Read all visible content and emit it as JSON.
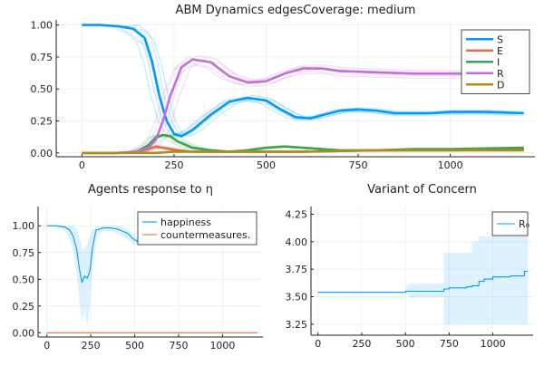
{
  "chart_data": [
    {
      "id": "abm",
      "type": "line",
      "title": "ABM Dynamics edgesCoverage: medium",
      "xlim": [
        -70,
        1230
      ],
      "ylim": [
        -0.03,
        1.04
      ],
      "xticks": [
        0,
        250,
        500,
        750,
        1000
      ],
      "yticks": [
        0.0,
        0.25,
        0.5,
        0.75,
        1.0
      ],
      "ytick_labels": [
        "0.00",
        "0.25",
        "0.50",
        "0.75",
        "1.00"
      ],
      "grid": true,
      "legend_position": "top-right",
      "series": [
        {
          "name": "S",
          "color": "#009af9",
          "x": [
            0,
            50,
            100,
            140,
            170,
            190,
            210,
            230,
            250,
            270,
            300,
            350,
            400,
            450,
            500,
            540,
            580,
            620,
            660,
            700,
            750,
            800,
            850,
            900,
            950,
            1000,
            1100,
            1200
          ],
          "y": [
            1.0,
            1.0,
            0.99,
            0.97,
            0.9,
            0.72,
            0.45,
            0.25,
            0.15,
            0.13,
            0.18,
            0.3,
            0.4,
            0.43,
            0.41,
            0.34,
            0.28,
            0.27,
            0.3,
            0.33,
            0.34,
            0.33,
            0.31,
            0.31,
            0.31,
            0.32,
            0.32,
            0.31
          ]
        },
        {
          "name": "E",
          "color": "#e26f46",
          "x": [
            0,
            100,
            150,
            180,
            200,
            220,
            240,
            260,
            300,
            400,
            500,
            600,
            800,
            1000,
            1200
          ],
          "y": [
            0.0,
            0.0,
            0.01,
            0.03,
            0.05,
            0.04,
            0.03,
            0.02,
            0.01,
            0.01,
            0.01,
            0.01,
            0.02,
            0.02,
            0.03
          ]
        },
        {
          "name": "I",
          "color": "#3da44d",
          "x": [
            0,
            100,
            150,
            180,
            200,
            220,
            240,
            260,
            300,
            350,
            400,
            450,
            500,
            550,
            600,
            700,
            800,
            900,
            1000,
            1200
          ],
          "y": [
            0.0,
            0.0,
            0.01,
            0.06,
            0.12,
            0.14,
            0.13,
            0.09,
            0.04,
            0.02,
            0.01,
            0.02,
            0.04,
            0.05,
            0.04,
            0.02,
            0.02,
            0.03,
            0.03,
            0.04
          ]
        },
        {
          "name": "R",
          "color": "#c271d2",
          "x": [
            0,
            100,
            150,
            180,
            200,
            220,
            240,
            270,
            300,
            350,
            400,
            450,
            500,
            550,
            600,
            650,
            700,
            800,
            900,
            1000,
            1100,
            1200
          ],
          "y": [
            0.0,
            0.0,
            0.01,
            0.04,
            0.1,
            0.25,
            0.45,
            0.67,
            0.73,
            0.71,
            0.6,
            0.55,
            0.56,
            0.62,
            0.66,
            0.66,
            0.64,
            0.63,
            0.62,
            0.62,
            0.62,
            0.62
          ]
        },
        {
          "name": "D",
          "color": "#ac8d18",
          "x": [
            0,
            200,
            250,
            300,
            400,
            600,
            800,
            1000,
            1200
          ],
          "y": [
            0.0,
            0.0,
            0.01,
            0.01,
            0.01,
            0.01,
            0.02,
            0.02,
            0.02
          ]
        }
      ]
    },
    {
      "id": "agents",
      "type": "line",
      "title": "Agents response to η",
      "xlim": [
        -50,
        1230
      ],
      "ylim": [
        -0.04,
        1.18
      ],
      "xticks": [
        0,
        250,
        500,
        750,
        1000
      ],
      "yticks": [
        0.0,
        0.25,
        0.5,
        0.75,
        1.0
      ],
      "ytick_labels": [
        "0.00",
        "0.25",
        "0.50",
        "0.75",
        "1.00"
      ],
      "grid": true,
      "legend_position": "top-right",
      "series": [
        {
          "name": "happiness",
          "color": "#009af9",
          "x": [
            0,
            50,
            100,
            130,
            150,
            170,
            185,
            200,
            215,
            230,
            245,
            260,
            280,
            320,
            360,
            400,
            430,
            460,
            490,
            520
          ],
          "y": [
            1.0,
            1.0,
            0.99,
            0.96,
            0.9,
            0.78,
            0.6,
            0.47,
            0.53,
            0.51,
            0.58,
            0.8,
            0.96,
            0.98,
            0.98,
            0.97,
            0.95,
            0.93,
            0.88,
            0.85
          ],
          "band_lower": [
            1.0,
            0.99,
            0.96,
            0.88,
            0.75,
            0.55,
            0.3,
            0.1,
            0.2,
            0.05,
            0.25,
            0.6,
            0.88,
            0.95,
            0.95,
            0.93,
            0.9,
            0.87,
            0.83,
            0.82
          ],
          "band_upper": [
            1.0,
            1.0,
            1.0,
            1.0,
            1.0,
            0.98,
            0.9,
            0.8,
            0.78,
            0.85,
            0.9,
            0.96,
            0.99,
            1.0,
            1.0,
            1.0,
            0.99,
            0.97,
            0.93,
            0.88
          ]
        },
        {
          "name": "countermeasures.",
          "color": "#e26f46",
          "x": [
            0,
            1200
          ],
          "y": [
            0.0,
            0.0
          ]
        }
      ]
    },
    {
      "id": "variant",
      "type": "line",
      "title": "Variant of Concern",
      "xlim": [
        -40,
        1230
      ],
      "ylim": [
        3.15,
        4.32
      ],
      "xticks": [
        0,
        250,
        500,
        750,
        1000
      ],
      "yticks": [
        3.25,
        3.5,
        3.75,
        4.0,
        4.25
      ],
      "ytick_labels": [
        "3.25",
        "3.50",
        "3.75",
        "4.00",
        "4.25"
      ],
      "grid": true,
      "legend_position": "top-right",
      "series": [
        {
          "name": "R₀",
          "color": "#009af9",
          "step": true,
          "x": [
            0,
            500,
            520,
            720,
            750,
            850,
            880,
            920,
            950,
            1000,
            1100,
            1180,
            1200
          ],
          "y": [
            3.54,
            3.55,
            3.55,
            3.57,
            3.58,
            3.59,
            3.6,
            3.64,
            3.66,
            3.68,
            3.69,
            3.73,
            3.73
          ],
          "band_lower": [
            3.54,
            3.52,
            3.49,
            3.25,
            3.25,
            3.25,
            3.25,
            3.25,
            3.25,
            3.25,
            3.25,
            3.25,
            3.25
          ],
          "band_upper": [
            3.54,
            3.6,
            3.62,
            3.9,
            3.9,
            3.9,
            4.0,
            4.05,
            4.05,
            4.05,
            4.05,
            4.05,
            4.05
          ]
        }
      ]
    }
  ]
}
